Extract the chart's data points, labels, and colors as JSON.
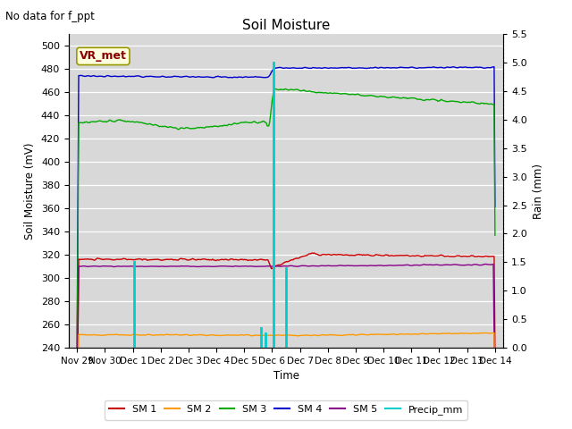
{
  "title": "Soil Moisture",
  "top_left_text": "No data for f_ppt",
  "vr_met_label": "VR_met",
  "ylabel_left": "Soil Moisture (mV)",
  "ylabel_right": "Rain (mm)",
  "xlabel": "Time",
  "ylim_left": [
    240,
    510
  ],
  "ylim_right": [
    0.0,
    5.5
  ],
  "yticks_left": [
    240,
    260,
    280,
    300,
    320,
    340,
    360,
    380,
    400,
    420,
    440,
    460,
    480,
    500
  ],
  "yticks_right": [
    0.0,
    0.5,
    1.0,
    1.5,
    2.0,
    2.5,
    3.0,
    3.5,
    4.0,
    4.5,
    5.0,
    5.5
  ],
  "bg_color": "#d8d8d8",
  "colors": {
    "SM1": "#cc0000",
    "SM2": "#ff9900",
    "SM3": "#00aa00",
    "SM4": "#0000cc",
    "SM5": "#880088",
    "Precip": "#00cccc"
  },
  "tick_labels": [
    "Nov 29",
    "Nov 30",
    "Dec 1",
    "Dec 2",
    "Dec 3",
    "Dec 4",
    "Dec 5",
    "Dec 6",
    "Dec 7",
    "Dec 8",
    "Dec 9",
    "Dec 10",
    "Dec 11",
    "Dec 12",
    "Dec 13",
    "Dec 14"
  ],
  "legend_entries": [
    "SM 1",
    "SM 2",
    "SM 3",
    "SM 4",
    "SM 5",
    "Precip_mm"
  ],
  "precip_spikes": {
    "days": [
      2.05,
      6.6,
      6.75,
      7.05,
      7.5
    ],
    "vals_mm": [
      1.5,
      0.35,
      0.25,
      5.0,
      1.4
    ]
  }
}
